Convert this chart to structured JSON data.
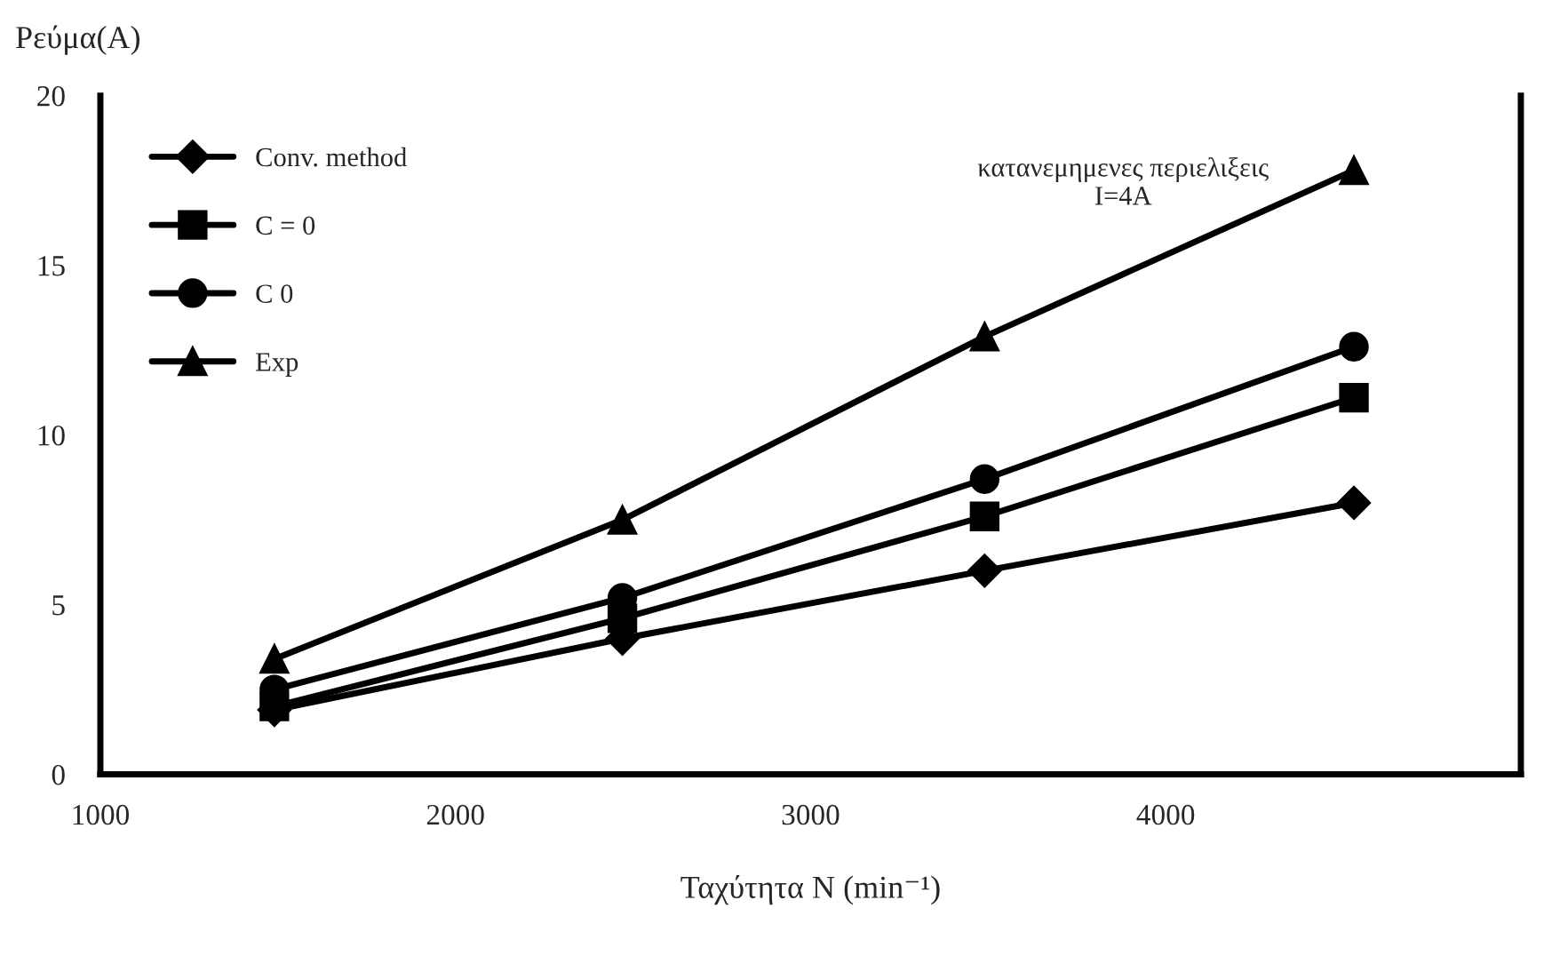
{
  "chart_data": {
    "type": "line",
    "xlabel": "Ταχύτητα N (min⁻¹)",
    "ylabel": "Ρεύμα(A)",
    "x": [
      1490,
      2470,
      3490,
      4530
    ],
    "series": [
      {
        "name": "Conv. method",
        "color": "#000000",
        "marker": "diamond",
        "values": [
          1.9,
          4.0,
          6.0,
          8.0
        ]
      },
      {
        "name": "C = 0",
        "color": "#000000",
        "marker": "square",
        "values": [
          2.0,
          4.6,
          7.6,
          11.1
        ]
      },
      {
        "name": "C 0",
        "color": "#000000",
        "marker": "circle",
        "values": [
          2.5,
          5.2,
          8.7,
          12.6
        ]
      },
      {
        "name": "Exp",
        "color": "#000000",
        "marker": "triangle",
        "values": [
          3.4,
          7.5,
          12.9,
          17.8
        ]
      }
    ],
    "annotations": [
      "κατανεμημενες περιελιξεις\nI=4A"
    ],
    "xlim": [
      1000,
      5000
    ],
    "xticks": [
      1000,
      2000,
      3000,
      4000
    ],
    "ylim": [
      0,
      20
    ],
    "yticks": [
      0,
      5,
      10,
      15,
      20
    ],
    "grid": false,
    "legend": "top left",
    "line_style": "solid"
  }
}
